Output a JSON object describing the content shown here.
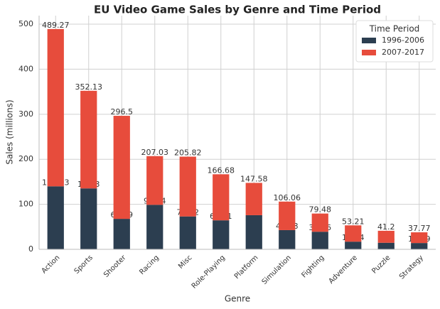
{
  "chart_data": {
    "type": "stacked-bar",
    "title": "EU Video Game Sales by Genre and Time Period",
    "x_label": "Genre",
    "y_label": "Sales (millions)",
    "categories": [
      "Action",
      "Sports",
      "Shooter",
      "Racing",
      "Misc",
      "Role-Playing",
      "Platform",
      "Simulation",
      "Fighting",
      "Adventure",
      "Puzzle",
      "Strategy"
    ],
    "series": [
      {
        "name": "1996-2006",
        "color": "#2c3e50",
        "values": [
          139.93,
          135.3,
          67.69,
          98.84,
          73.02,
          64.41,
          75.8,
          42.68,
          39.06,
          17.04,
          14.6,
          13.99
        ]
      },
      {
        "name": "2007-2017",
        "color": "#e74c3c",
        "values": [
          349.34,
          216.83,
          228.81,
          108.19,
          132.8,
          102.27,
          71.78,
          63.38,
          40.42,
          36.17,
          26.6,
          23.78
        ]
      }
    ],
    "totals": [
      489.27,
      352.13,
      296.5,
      207.03,
      205.82,
      166.68,
      147.58,
      106.06,
      79.48,
      53.21,
      41.2,
      37.77
    ],
    "ylim": [
      0,
      519
    ],
    "yticks": [
      0,
      100,
      200,
      300,
      400,
      500
    ],
    "grid": true,
    "legend_title": "Time Period",
    "legend_position": "upper-right"
  }
}
